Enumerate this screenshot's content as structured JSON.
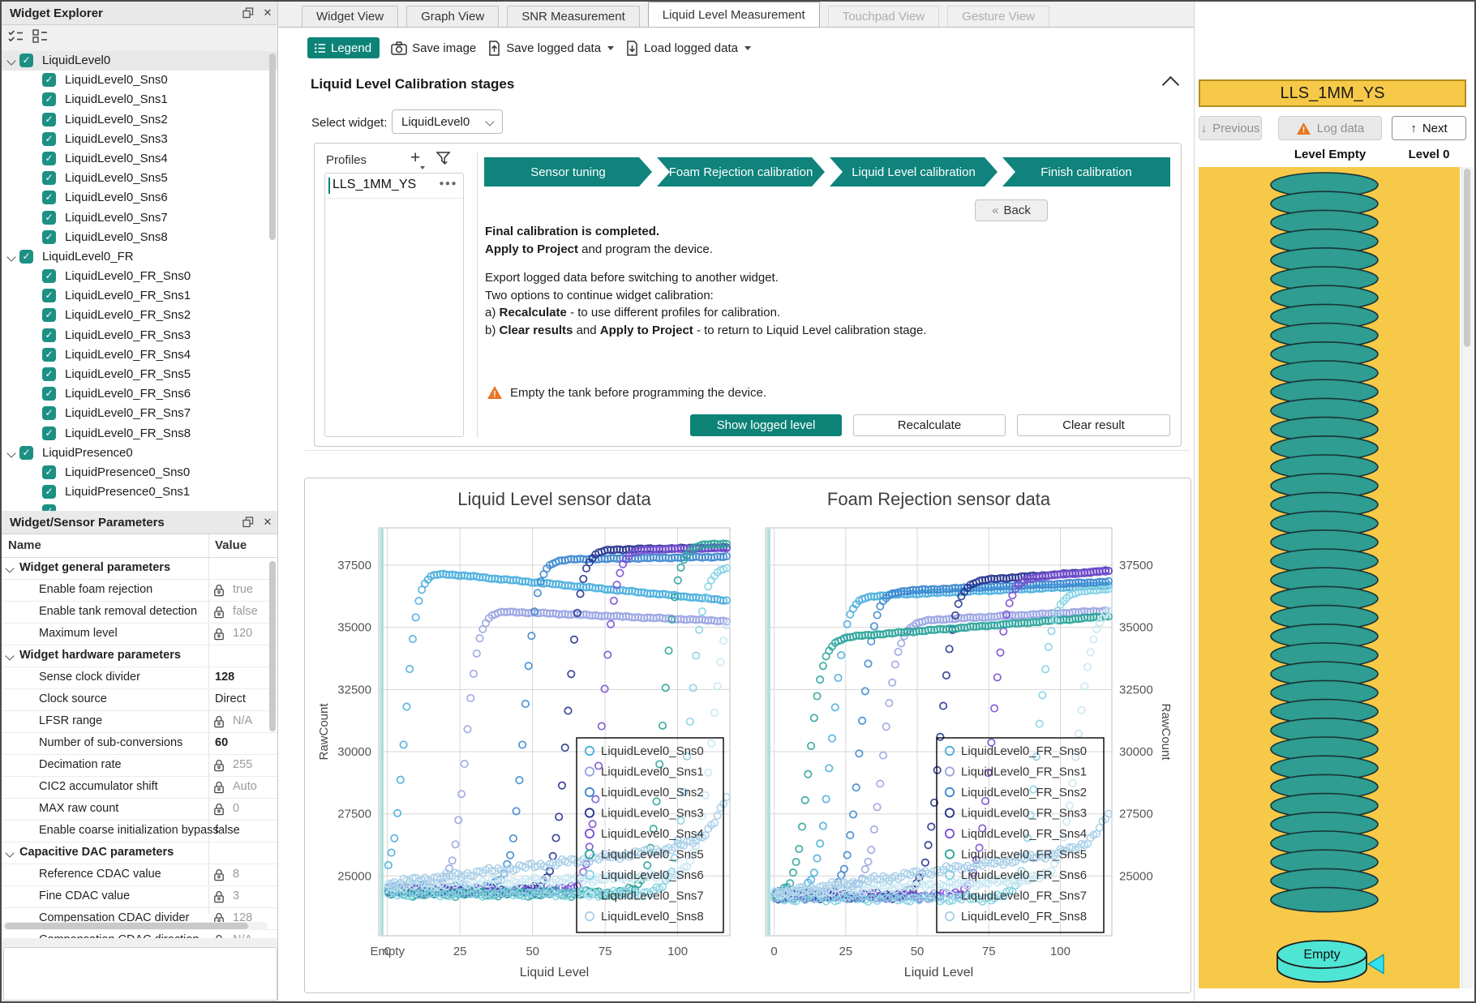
{
  "widget_explorer": {
    "title": "Widget Explorer",
    "items": [
      {
        "label": "LiquidLevel0",
        "level": 0,
        "parent": true,
        "checked": true,
        "selected": true
      },
      {
        "label": "LiquidLevel0_Sns0",
        "level": 1,
        "checked": true
      },
      {
        "label": "LiquidLevel0_Sns1",
        "level": 1,
        "checked": true
      },
      {
        "label": "LiquidLevel0_Sns2",
        "level": 1,
        "checked": true
      },
      {
        "label": "LiquidLevel0_Sns3",
        "level": 1,
        "checked": true
      },
      {
        "label": "LiquidLevel0_Sns4",
        "level": 1,
        "checked": true
      },
      {
        "label": "LiquidLevel0_Sns5",
        "level": 1,
        "checked": true
      },
      {
        "label": "LiquidLevel0_Sns6",
        "level": 1,
        "checked": true
      },
      {
        "label": "LiquidLevel0_Sns7",
        "level": 1,
        "checked": true
      },
      {
        "label": "LiquidLevel0_Sns8",
        "level": 1,
        "checked": true
      },
      {
        "label": "LiquidLevel0_FR",
        "level": 0,
        "parent": true,
        "checked": true
      },
      {
        "label": "LiquidLevel0_FR_Sns0",
        "level": 1,
        "checked": true
      },
      {
        "label": "LiquidLevel0_FR_Sns1",
        "level": 1,
        "checked": true
      },
      {
        "label": "LiquidLevel0_FR_Sns2",
        "level": 1,
        "checked": true
      },
      {
        "label": "LiquidLevel0_FR_Sns3",
        "level": 1,
        "checked": true
      },
      {
        "label": "LiquidLevel0_FR_Sns4",
        "level": 1,
        "checked": true
      },
      {
        "label": "LiquidLevel0_FR_Sns5",
        "level": 1,
        "checked": true
      },
      {
        "label": "LiquidLevel0_FR_Sns6",
        "level": 1,
        "checked": true
      },
      {
        "label": "LiquidLevel0_FR_Sns7",
        "level": 1,
        "checked": true
      },
      {
        "label": "LiquidLevel0_FR_Sns8",
        "level": 1,
        "checked": true
      },
      {
        "label": "LiquidPresence0",
        "level": 0,
        "parent": true,
        "checked": true
      },
      {
        "label": "LiquidPresence0_Sns0",
        "level": 1,
        "checked": true
      },
      {
        "label": "LiquidPresence0_Sns1",
        "level": 1,
        "checked": true
      },
      {
        "label": "",
        "level": 1,
        "checked": true,
        "partial": true
      }
    ]
  },
  "parameters_panel": {
    "title": "Widget/Sensor Parameters",
    "columns": [
      "Name",
      "Value"
    ],
    "rows": [
      {
        "type": "group",
        "label": "Widget general parameters"
      },
      {
        "label": "Enable foam rejection",
        "value": "true",
        "locked": true
      },
      {
        "label": "Enable tank removal detection",
        "value": "false",
        "locked": true
      },
      {
        "label": "Maximum level",
        "value": "120",
        "locked": true
      },
      {
        "type": "group",
        "label": "Widget hardware parameters"
      },
      {
        "label": "Sense clock divider",
        "value": "128",
        "locked": false,
        "bold": true
      },
      {
        "label": "Clock source",
        "value": "Direct",
        "locked": false
      },
      {
        "label": "LFSR range",
        "value": "N/A",
        "locked": true
      },
      {
        "label": "Number of sub-conversions",
        "value": "60",
        "locked": false,
        "bold": true
      },
      {
        "label": "Decimation rate",
        "value": "255",
        "locked": true
      },
      {
        "label": "CIC2 accumulator shift",
        "value": "Auto",
        "locked": true
      },
      {
        "label": "MAX raw count",
        "value": "0",
        "locked": true
      },
      {
        "label": "Enable coarse initialization bypass",
        "value": "false",
        "locked": false
      },
      {
        "type": "group",
        "label": "Capacitive DAC parameters"
      },
      {
        "label": "Reference CDAC value",
        "value": "8",
        "locked": true
      },
      {
        "label": "Fine CDAC value",
        "value": "3",
        "locked": true
      },
      {
        "label": "Compensation CDAC divider",
        "value": "128",
        "locked": true
      },
      {
        "label": "Compensation CDAC direction",
        "value": "N/A",
        "locked": true
      }
    ]
  },
  "tabs": [
    {
      "label": "Widget View",
      "state": "normal"
    },
    {
      "label": "Graph View",
      "state": "normal"
    },
    {
      "label": "SNR Measurement",
      "state": "normal"
    },
    {
      "label": "Liquid Level Measurement",
      "state": "active"
    },
    {
      "label": "Touchpad View",
      "state": "disabled"
    },
    {
      "label": "Gesture View",
      "state": "disabled"
    }
  ],
  "toolbar": {
    "legend_label": "Legend",
    "save_image_label": "Save image",
    "save_logged_label": "Save logged data",
    "load_logged_label": "Load logged data"
  },
  "calibration": {
    "header": "Liquid Level Calibration stages",
    "select_label": "Select widget:",
    "selected_widget": "LiquidLevel0",
    "profiles_title": "Profiles",
    "profiles": [
      "LLS_1MM_YS"
    ],
    "profile_menu_dots": "●●●",
    "stages": [
      "Sensor tuning",
      "Foam Rejection calibration",
      "Liquid Level calibration",
      "Finish calibration"
    ],
    "back_label": "Back",
    "back_glyph": "«",
    "messages": [
      {
        "segments": [
          {
            "text": "Final calibration is completed.",
            "bold": true
          }
        ]
      },
      {
        "segments": [
          {
            "text": "Apply to Project",
            "bold": true
          },
          {
            "text": " and program the device.",
            "bold": false
          }
        ]
      },
      {
        "spacer": true
      },
      {
        "segments": [
          {
            "text": "Export logged data before switching to another widget.",
            "bold": false
          }
        ]
      },
      {
        "segments": [
          {
            "text": "Two options to continue widget calibration:",
            "bold": false
          }
        ]
      },
      {
        "segments": [
          {
            "text": "a) ",
            "bold": false
          },
          {
            "text": "Recalculate",
            "bold": true
          },
          {
            "text": " - to use different profiles for calibration.",
            "bold": false
          }
        ]
      },
      {
        "segments": [
          {
            "text": "b) ",
            "bold": false
          },
          {
            "text": "Clear results",
            "bold": true
          },
          {
            "text": " and ",
            "bold": false
          },
          {
            "text": "Apply to Project",
            "bold": true
          },
          {
            "text": " - to return to Liquid Level calibration stage.",
            "bold": false
          }
        ]
      }
    ],
    "warning": "Empty the tank before programming the device.",
    "buttons": {
      "show": "Show logged level",
      "recalculate": "Recalculate",
      "clear": "Clear result"
    }
  },
  "right_panel": {
    "profile_title": "LLS_1MM_YS",
    "previous_label": "Previous",
    "previous_glyph": "↓",
    "log_data_label": "Log data",
    "next_label": "Next",
    "next_glyph": "↑",
    "level_left_label": "Level Empty",
    "level_right_label": "Level 0",
    "tank_empty_label": "Empty"
  },
  "colors": {
    "accent_teal": "#0f837c",
    "checkbox_teal": "#1d9084",
    "banner_yellow": "#f7c948",
    "banner_border": "#b28f1f",
    "warning_orange": "#e87722",
    "coil_teal": "#2f9d91",
    "empty_cyan": "#4fe5d4",
    "marker_cyan": "#31e3ee"
  },
  "chart_data": [
    {
      "type": "scatter",
      "title": "Liquid Level sensor data",
      "xlabel": "Liquid Level",
      "ylabel": "RawCount",
      "xlim": [
        -3,
        118
      ],
      "ylim": [
        22600,
        39000
      ],
      "x_ticks": [
        0,
        25,
        50,
        75,
        100
      ],
      "x_zero_label": "Empty",
      "y_ticks": [
        25000,
        27500,
        30000,
        32500,
        35000,
        37500
      ],
      "y_axis_side": "left",
      "grid": true,
      "legend_position": "right-center",
      "series": [
        {
          "name": "LiquidLevel0_Sns0",
          "color": "#4aaede",
          "base": 24600,
          "top": 37300,
          "rise_x": 6,
          "rise_w": 2.1,
          "drift": -11,
          "base_drift": 0
        },
        {
          "name": "LiquidLevel0_Sns1",
          "color": "#9aa4e2",
          "base": 24500,
          "top": 35700,
          "rise_x": 27,
          "rise_w": 2.2,
          "drift": -5,
          "base_drift": 0
        },
        {
          "name": "LiquidLevel0_Sns2",
          "color": "#3c87cf",
          "base": 24500,
          "top": 37700,
          "rise_x": 47,
          "rise_w": 2.2,
          "drift": 2,
          "base_drift": 0
        },
        {
          "name": "LiquidLevel0_Sns3",
          "color": "#25338e",
          "base": 24400,
          "top": 38100,
          "rise_x": 62,
          "rise_w": 2.3,
          "drift": 2,
          "base_drift": 0
        },
        {
          "name": "LiquidLevel0_Sns4",
          "color": "#7a4fd3",
          "base": 24400,
          "top": 38100,
          "rise_x": 74,
          "rise_w": 2.3,
          "drift": 2,
          "base_drift": 0
        },
        {
          "name": "LiquidLevel0_Sns5",
          "color": "#2ba49b",
          "base": 24300,
          "top": 38300,
          "rise_x": 95,
          "rise_w": 2.3,
          "drift": 3,
          "base_drift": 0
        },
        {
          "name": "LiquidLevel0_Sns6",
          "color": "#86d3e3",
          "base": 24300,
          "top": 37400,
          "rise_x": 104,
          "rise_w": 2.4,
          "drift": 4,
          "base_drift": 0
        },
        {
          "name": "LiquidLevel0_Sns7",
          "color": "#c7e7f2",
          "base": 24600,
          "top": 36600,
          "rise_x": 112,
          "rise_w": 2.6,
          "drift": 0,
          "base_drift": 4
        },
        {
          "name": "LiquidLevel0_Sns8",
          "color": "#a9cfe8",
          "base": 24700,
          "top": 36000,
          "rise_x": 124,
          "rise_w": 5,
          "drift": 0,
          "base_drift": 14
        }
      ]
    },
    {
      "type": "scatter",
      "title": "Foam Rejection sensor data",
      "xlabel": "Liquid Level",
      "ylabel": "RawCount",
      "xlim": [
        -3,
        118
      ],
      "ylim": [
        22600,
        39000
      ],
      "x_ticks": [
        0,
        25,
        50,
        75,
        100
      ],
      "x_zero_label": "0",
      "y_ticks": [
        25000,
        27500,
        30000,
        32500,
        35000,
        37500
      ],
      "y_axis_side": "right",
      "grid": true,
      "legend_position": "right-center",
      "series": [
        {
          "name": "LiquidLevel0_FR_Sns0",
          "color": "#4aaede",
          "base": 24300,
          "top": 36200,
          "rise_x": 20,
          "rise_w": 2.4,
          "drift": 5,
          "base_drift": 0
        },
        {
          "name": "LiquidLevel0_FR_Sns1",
          "color": "#9aa4e2",
          "base": 24300,
          "top": 35200,
          "rise_x": 38,
          "rise_w": 2.6,
          "drift": 6,
          "base_drift": 0
        },
        {
          "name": "LiquidLevel0_FR_Sns2",
          "color": "#3c87cf",
          "base": 24200,
          "top": 36400,
          "rise_x": 30,
          "rise_w": 2.4,
          "drift": 5,
          "base_drift": 0
        },
        {
          "name": "LiquidLevel0_FR_Sns3",
          "color": "#25338e",
          "base": 24200,
          "top": 36800,
          "rise_x": 58,
          "rise_w": 2.5,
          "drift": 8,
          "base_drift": 0
        },
        {
          "name": "LiquidLevel0_FR_Sns4",
          "color": "#7a4fd3",
          "base": 24200,
          "top": 36900,
          "rise_x": 76,
          "rise_w": 2.5,
          "drift": 9,
          "base_drift": 0
        },
        {
          "name": "LiquidLevel0_FR_Sns5",
          "color": "#2ba49b",
          "base": 24100,
          "top": 34500,
          "rise_x": 12,
          "rise_w": 2.4,
          "drift": 9,
          "base_drift": 0
        },
        {
          "name": "LiquidLevel0_FR_Sns6",
          "color": "#86d3e3",
          "base": 24100,
          "top": 36300,
          "rise_x": 92,
          "rise_w": 2.5,
          "drift": 10,
          "base_drift": 0
        },
        {
          "name": "LiquidLevel0_FR_Sns7",
          "color": "#c7e7f2",
          "base": 24300,
          "top": 35800,
          "rise_x": 106,
          "rise_w": 2.8,
          "drift": 6,
          "base_drift": 6
        },
        {
          "name": "LiquidLevel0_FR_Sns8",
          "color": "#a9cfe8",
          "base": 24300,
          "top": 36000,
          "rise_x": 126,
          "rise_w": 5,
          "drift": 0,
          "base_drift": 16
        }
      ]
    }
  ]
}
